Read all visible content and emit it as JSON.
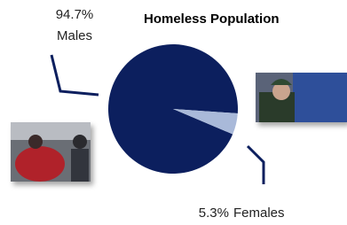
{
  "chart_data": {
    "type": "pie",
    "title": "Homeless Population",
    "categories": [
      "Males",
      "Females"
    ],
    "values": [
      94.7,
      5.3
    ],
    "value_labels": [
      "94.7%",
      "5.3%"
    ],
    "colors": [
      "#0c1f5e",
      "#a9b9d9"
    ]
  }
}
